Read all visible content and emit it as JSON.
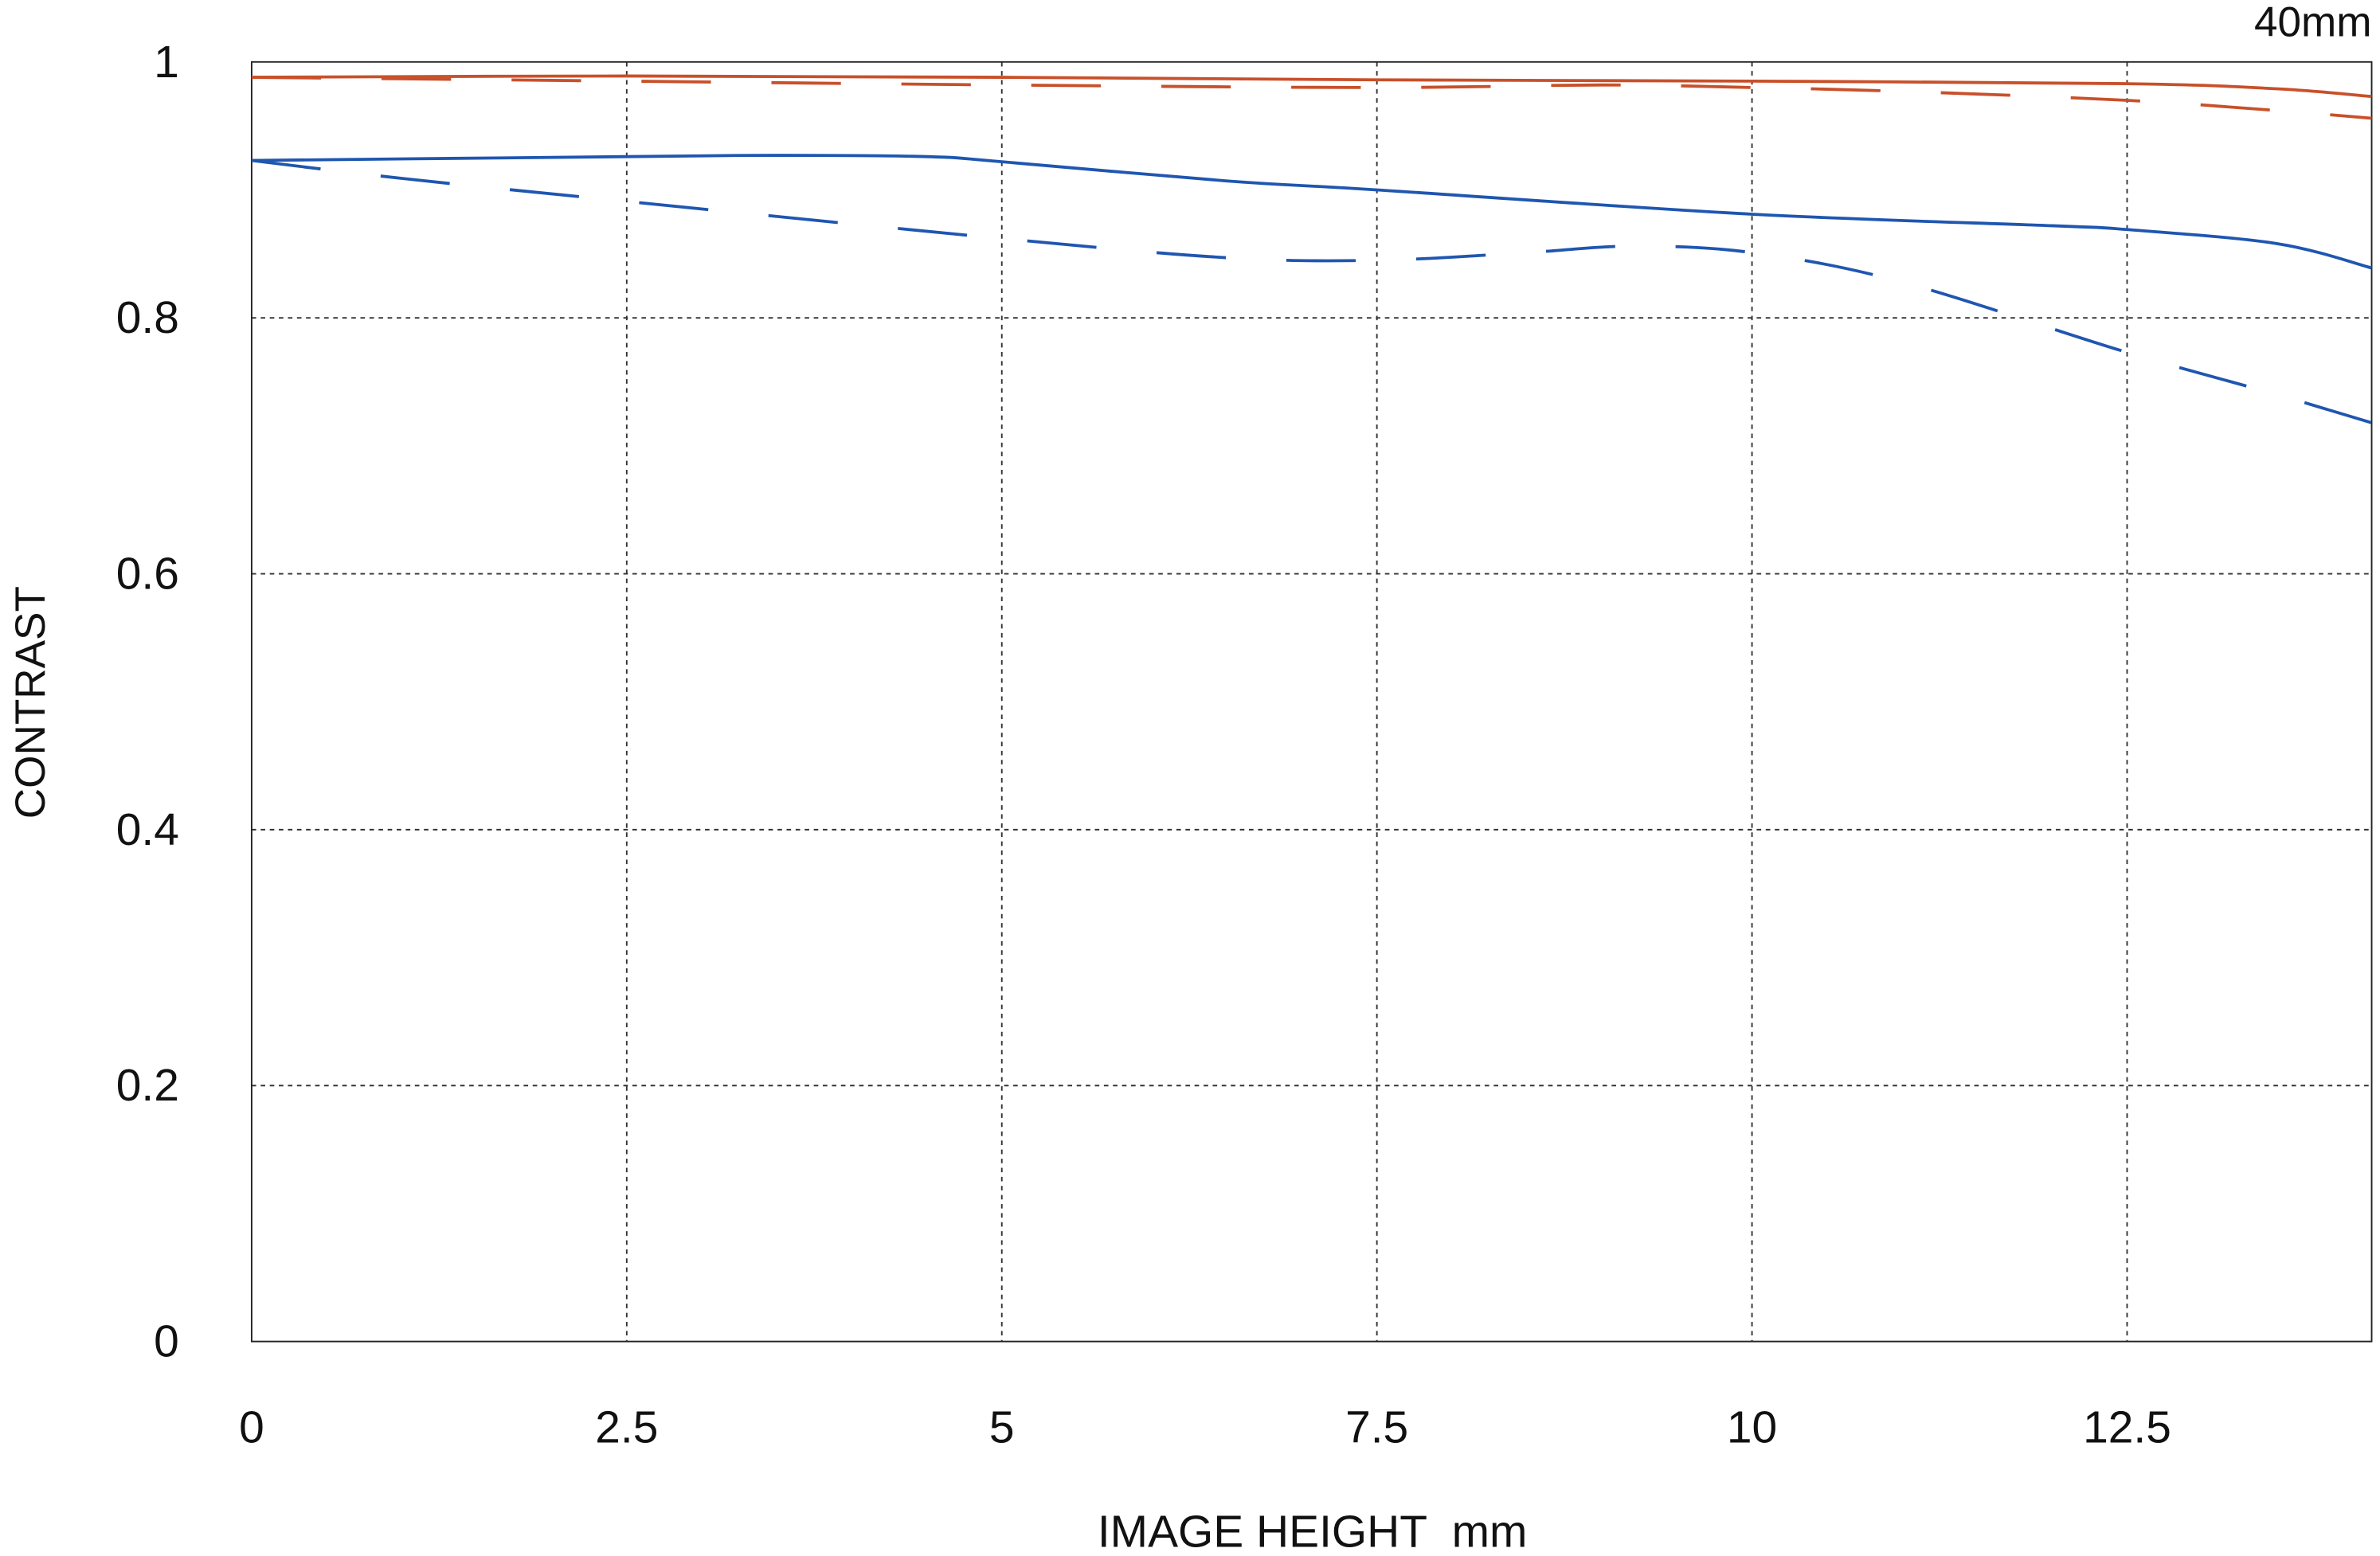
{
  "chart_data": {
    "type": "line",
    "title": "40mm",
    "xlabel": "IMAGE HEIGHT  mm",
    "ylabel": "CONTRAST",
    "xlim": [
      0,
      14.13
    ],
    "ylim": [
      0,
      1
    ],
    "xticks": [
      0,
      2.5,
      5,
      7.5,
      10,
      12.5
    ],
    "xtick_labels": [
      "0",
      "2.5",
      "5",
      "7.5",
      "10",
      "12.5"
    ],
    "yticks": [
      0,
      0.2,
      0.4,
      0.6,
      0.8,
      1
    ],
    "ytick_labels": [
      "0",
      "0.2",
      "0.4",
      "0.6",
      "0.8",
      "1"
    ],
    "grid": true,
    "series": [
      {
        "color": "#c8502a",
        "style": "solid",
        "x": [
          0,
          2.5,
          5,
          7.5,
          10,
          12.5,
          13.5,
          14.13
        ],
        "y": [
          0.988,
          0.989,
          0.988,
          0.986,
          0.985,
          0.983,
          0.979,
          0.973
        ]
      },
      {
        "color": "#c8502a",
        "style": "dashed",
        "x": [
          0,
          2.5,
          5,
          7.5,
          9,
          10,
          11,
          12.5,
          13.5,
          14.13
        ],
        "y": [
          0.988,
          0.985,
          0.982,
          0.98,
          0.982,
          0.98,
          0.977,
          0.97,
          0.962,
          0.956
        ]
      },
      {
        "color": "#1f56b0",
        "style": "solid",
        "x": [
          0,
          2.5,
          3.5,
          4.5,
          5,
          6.5,
          7.5,
          10,
          12,
          12.5,
          13.5,
          14.13
        ],
        "y": [
          0.923,
          0.926,
          0.927,
          0.926,
          0.922,
          0.907,
          0.9,
          0.881,
          0.872,
          0.869,
          0.858,
          0.839
        ]
      },
      {
        "color": "#1f56b0",
        "style": "dashed",
        "x": [
          0,
          1,
          2.5,
          5,
          6.5,
          7.5,
          8.5,
          9.2,
          10,
          11,
          12.5,
          13.5,
          14.13
        ],
        "y": [
          0.923,
          0.909,
          0.891,
          0.862,
          0.847,
          0.845,
          0.851,
          0.856,
          0.851,
          0.828,
          0.773,
          0.74,
          0.718
        ]
      }
    ]
  }
}
